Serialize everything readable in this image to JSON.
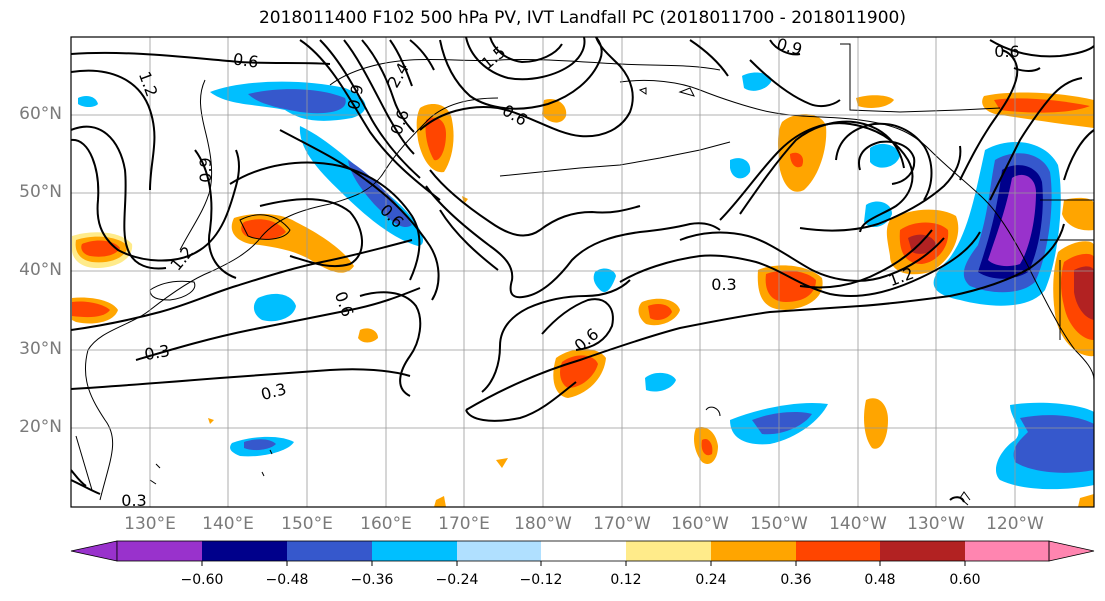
{
  "title": "2018011400 F102 500 hPa PV, IVT Landfall PC (2018011700 - 2018011900)",
  "lat_labels": [
    "60°N",
    "50°N",
    "40°N",
    "30°N",
    "20°N"
  ],
  "lon_labels": [
    "130°E",
    "140°E",
    "150°E",
    "160°E",
    "170°E",
    "180°W",
    "170°W",
    "160°W",
    "150°W",
    "140°W",
    "130°W",
    "120°W"
  ],
  "contour_labels": [
    "0.6",
    "1.2",
    "0.9",
    "2.4",
    "1.5",
    "0.6",
    "0.6",
    "0.9",
    "0.6",
    "0.9",
    "0.3",
    "1.2",
    "0.6",
    "0.6",
    "0.3",
    "0.3",
    "0.6",
    "0.3",
    "1.2"
  ],
  "colorbar": {
    "ticks": [
      "−0.60",
      "−0.48",
      "−0.36",
      "−0.24",
      "−0.12",
      "0.12",
      "0.24",
      "0.36",
      "0.48",
      "0.60"
    ],
    "colors": [
      "#9932cc",
      "#00008b",
      "#3658cc",
      "#00bfff",
      "#b0e0ff",
      "#ffffff",
      "#ffeb8a",
      "#ffa500",
      "#ff4500",
      "#b22222",
      "#ff85b0"
    ]
  }
}
